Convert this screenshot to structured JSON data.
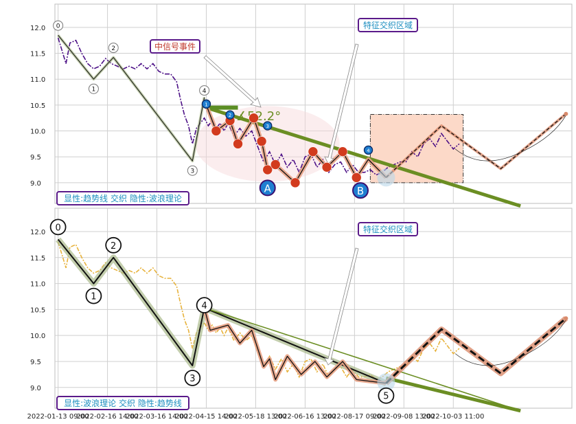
{
  "chart_data": [
    {
      "type": "line",
      "panel": "top",
      "xlabel": "",
      "ylabel": "",
      "ylim": [
        8.6,
        12.45
      ],
      "yticks": [
        "12.0",
        "11.5",
        "11.0",
        "10.5",
        "10.0",
        "9.5",
        "9.0"
      ],
      "ytick_values": [
        12.0,
        11.5,
        11.0,
        10.5,
        10.0,
        9.5,
        9.0
      ],
      "grid": true,
      "legend_text": "显性:趋势线 交织 隐性:波浪理论",
      "event_label": "中信号事件",
      "zone_label": "特征交织区域",
      "angle_label": "∡52.2°",
      "point_a_label": "A",
      "point_b_label": "B",
      "wave_labels": [
        "0",
        "1",
        "2",
        "3",
        "4"
      ],
      "wave_points": [
        [
          0.0,
          11.85
        ],
        [
          0.9,
          11.0
        ],
        [
          1.4,
          11.42
        ],
        [
          3.4,
          9.42
        ],
        [
          3.7,
          10.65
        ]
      ],
      "trend_line": [
        [
          3.75,
          10.45
        ],
        [
          11.7,
          8.55
        ]
      ],
      "trend_bar": [
        [
          3.8,
          10.45
        ],
        [
          4.55,
          10.45
        ]
      ],
      "small_circle_labels": [
        "1",
        "2",
        "3",
        "4"
      ],
      "zigzag": [
        [
          3.75,
          10.5
        ],
        [
          4.0,
          10.0
        ],
        [
          4.35,
          10.2
        ],
        [
          4.55,
          9.75
        ],
        [
          4.95,
          10.25
        ],
        [
          5.15,
          9.8
        ],
        [
          5.3,
          9.25
        ],
        [
          5.5,
          9.35
        ],
        [
          6.0,
          9.0
        ],
        [
          6.45,
          9.6
        ],
        [
          6.8,
          9.3
        ],
        [
          7.2,
          9.6
        ],
        [
          7.55,
          9.1
        ],
        [
          7.85,
          9.45
        ],
        [
          8.3,
          9.1
        ]
      ],
      "forecast": [
        [
          8.3,
          9.1
        ],
        [
          9.7,
          10.1
        ],
        [
          11.2,
          9.27
        ],
        [
          12.85,
          10.33
        ]
      ],
      "zone_range": {
        "x": [
          7.9,
          10.25
        ],
        "y": [
          9.0,
          10.32
        ]
      },
      "price_series": [
        [
          0.0,
          11.8
        ],
        [
          0.1,
          11.55
        ],
        [
          0.2,
          11.3
        ],
        [
          0.3,
          11.7
        ],
        [
          0.45,
          11.75
        ],
        [
          0.6,
          11.5
        ],
        [
          0.75,
          11.3
        ],
        [
          0.9,
          11.2
        ],
        [
          1.05,
          11.25
        ],
        [
          1.2,
          11.4
        ],
        [
          1.35,
          11.3
        ],
        [
          1.5,
          11.25
        ],
        [
          1.65,
          11.2
        ],
        [
          1.8,
          11.25
        ],
        [
          1.95,
          11.2
        ],
        [
          2.1,
          11.3
        ],
        [
          2.25,
          11.2
        ],
        [
          2.4,
          11.3
        ],
        [
          2.55,
          11.15
        ],
        [
          2.7,
          11.1
        ],
        [
          2.85,
          11.1
        ],
        [
          3.0,
          10.95
        ],
        [
          3.1,
          10.6
        ],
        [
          3.2,
          10.3
        ],
        [
          3.3,
          10.1
        ],
        [
          3.4,
          9.75
        ],
        [
          3.5,
          10.05
        ],
        [
          3.6,
          10.15
        ],
        [
          3.7,
          10.25
        ],
        [
          3.8,
          10.1
        ],
        [
          3.9,
          10.2
        ],
        [
          4.0,
          10.05
        ],
        [
          4.1,
          10.15
        ],
        [
          4.2,
          10.0
        ],
        [
          4.3,
          10.15
        ],
        [
          4.45,
          9.9
        ],
        [
          4.6,
          10.05
        ],
        [
          4.75,
          9.9
        ],
        [
          4.9,
          10.0
        ],
        [
          5.05,
          9.7
        ],
        [
          5.2,
          9.4
        ],
        [
          5.35,
          9.6
        ],
        [
          5.5,
          9.35
        ],
        [
          5.65,
          9.55
        ],
        [
          5.8,
          9.3
        ],
        [
          5.95,
          9.45
        ],
        [
          6.1,
          9.2
        ],
        [
          6.25,
          9.5
        ],
        [
          6.4,
          9.55
        ],
        [
          6.55,
          9.3
        ],
        [
          6.7,
          9.45
        ],
        [
          6.85,
          9.2
        ],
        [
          7.0,
          9.35
        ],
        [
          7.15,
          9.4
        ],
        [
          7.3,
          9.2
        ],
        [
          7.45,
          9.35
        ],
        [
          7.6,
          9.2
        ],
        [
          7.75,
          9.2
        ],
        [
          7.9,
          9.25
        ],
        [
          8.05,
          9.15
        ],
        [
          8.2,
          9.2
        ],
        [
          8.35,
          9.3
        ],
        [
          8.5,
          9.35
        ],
        [
          8.65,
          9.4
        ],
        [
          8.8,
          9.4
        ],
        [
          8.95,
          9.6
        ],
        [
          9.1,
          9.5
        ],
        [
          9.25,
          9.75
        ],
        [
          9.4,
          9.85
        ],
        [
          9.55,
          9.7
        ],
        [
          9.7,
          9.95
        ],
        [
          9.85,
          9.8
        ],
        [
          10.0,
          9.65
        ],
        [
          10.15,
          9.75
        ]
      ]
    },
    {
      "type": "line",
      "panel": "bottom",
      "xlabel": "",
      "ylabel": "",
      "ylim": [
        8.6,
        12.45
      ],
      "yticks": [
        "12.0",
        "11.5",
        "11.0",
        "10.5",
        "10.0",
        "9.5",
        "9.0"
      ],
      "ytick_values": [
        12.0,
        11.5,
        11.0,
        10.5,
        10.0,
        9.5,
        9.0
      ],
      "grid": true,
      "legend_text": "显性:波浪理论 交织 隐性:趋势线",
      "zone_label": "特征交织区域",
      "wave_labels": [
        "0",
        "1",
        "2",
        "3",
        "4",
        "5"
      ],
      "wave_points": [
        [
          0.0,
          11.85
        ],
        [
          0.9,
          11.0
        ],
        [
          1.4,
          11.5
        ],
        [
          3.4,
          9.42
        ],
        [
          3.7,
          10.53
        ],
        [
          8.3,
          9.08
        ]
      ],
      "trend_line": [
        [
          3.7,
          10.53
        ],
        [
          11.7,
          8.55
        ]
      ],
      "zigzag": [
        [
          3.7,
          10.53
        ],
        [
          3.85,
          10.1
        ],
        [
          4.3,
          10.2
        ],
        [
          4.6,
          9.85
        ],
        [
          4.9,
          10.1
        ],
        [
          5.2,
          9.4
        ],
        [
          5.35,
          9.55
        ],
        [
          5.5,
          9.15
        ],
        [
          5.8,
          9.6
        ],
        [
          6.15,
          9.25
        ],
        [
          6.5,
          9.5
        ],
        [
          6.8,
          9.2
        ],
        [
          7.2,
          9.5
        ],
        [
          7.55,
          9.15
        ],
        [
          8.3,
          9.08
        ]
      ],
      "forecast": [
        [
          8.3,
          9.08
        ],
        [
          9.7,
          10.12
        ],
        [
          11.2,
          9.27
        ],
        [
          12.85,
          10.33
        ]
      ],
      "price_series": [
        [
          0.0,
          11.8
        ],
        [
          0.1,
          11.55
        ],
        [
          0.2,
          11.3
        ],
        [
          0.3,
          11.7
        ],
        [
          0.45,
          11.75
        ],
        [
          0.6,
          11.5
        ],
        [
          0.75,
          11.3
        ],
        [
          0.9,
          11.2
        ],
        [
          1.05,
          11.25
        ],
        [
          1.2,
          11.4
        ],
        [
          1.35,
          11.3
        ],
        [
          1.5,
          11.25
        ],
        [
          1.65,
          11.2
        ],
        [
          1.8,
          11.25
        ],
        [
          1.95,
          11.2
        ],
        [
          2.1,
          11.3
        ],
        [
          2.25,
          11.2
        ],
        [
          2.4,
          11.3
        ],
        [
          2.55,
          11.15
        ],
        [
          2.7,
          11.1
        ],
        [
          2.85,
          11.1
        ],
        [
          3.0,
          10.95
        ],
        [
          3.1,
          10.6
        ],
        [
          3.2,
          10.3
        ],
        [
          3.3,
          10.1
        ],
        [
          3.4,
          9.75
        ],
        [
          3.5,
          10.05
        ],
        [
          3.6,
          10.15
        ],
        [
          3.7,
          10.25
        ],
        [
          3.8,
          10.1
        ],
        [
          3.9,
          10.2
        ],
        [
          4.0,
          10.05
        ],
        [
          4.1,
          10.15
        ],
        [
          4.2,
          10.0
        ],
        [
          4.3,
          10.15
        ],
        [
          4.45,
          9.9
        ],
        [
          4.6,
          10.05
        ],
        [
          4.75,
          9.9
        ],
        [
          4.9,
          10.0
        ],
        [
          5.05,
          9.7
        ],
        [
          5.2,
          9.4
        ],
        [
          5.35,
          9.6
        ],
        [
          5.5,
          9.35
        ],
        [
          5.65,
          9.55
        ],
        [
          5.8,
          9.3
        ],
        [
          5.95,
          9.45
        ],
        [
          6.1,
          9.2
        ],
        [
          6.25,
          9.5
        ],
        [
          6.4,
          9.55
        ],
        [
          6.55,
          9.3
        ],
        [
          6.7,
          9.45
        ],
        [
          6.85,
          9.2
        ],
        [
          7.0,
          9.35
        ],
        [
          7.15,
          9.4
        ],
        [
          7.3,
          9.2
        ],
        [
          7.45,
          9.35
        ],
        [
          7.6,
          9.2
        ],
        [
          7.75,
          9.2
        ],
        [
          7.9,
          9.25
        ],
        [
          8.05,
          9.15
        ],
        [
          8.2,
          9.2
        ],
        [
          8.35,
          9.3
        ],
        [
          8.5,
          9.35
        ],
        [
          8.65,
          9.4
        ],
        [
          8.8,
          9.4
        ],
        [
          8.95,
          9.6
        ],
        [
          9.1,
          9.5
        ],
        [
          9.25,
          9.75
        ],
        [
          9.4,
          9.85
        ],
        [
          9.55,
          9.7
        ],
        [
          9.7,
          9.95
        ],
        [
          9.85,
          9.8
        ],
        [
          10.0,
          9.65
        ],
        [
          10.15,
          9.75
        ]
      ]
    }
  ],
  "x_axis": {
    "tick_labels": [
      "2022-01-13 09:00",
      "2022-02-16 14:00",
      "2022-03-16 14:00",
      "2022-04-15 14:00",
      "2022-05-18 13:00",
      "2022-06-16 13:00",
      "2022-08-17 09:00",
      "2022-09-08 13:00",
      "2022-10-03 11:00"
    ],
    "tick_positions": [
      0,
      1.25,
      2.5,
      3.75,
      5.0,
      6.25,
      7.5,
      8.75,
      10.0
    ]
  },
  "colors": {
    "top_price": "#4b0f86",
    "bottom_price": "#e7b23b",
    "trend_green": "#6b8e23",
    "bar_green": "#5b8e24",
    "zigzag_fill": "#e7a184",
    "forecast": "#d98b6c",
    "zone_fill": "#fcd9c8",
    "label_border": "#5a1a8a",
    "label_text": "#1e8fc0",
    "event_text": "#c0392b",
    "red_marker": "#d23b1e",
    "blue_marker": "#1f7fd1"
  }
}
